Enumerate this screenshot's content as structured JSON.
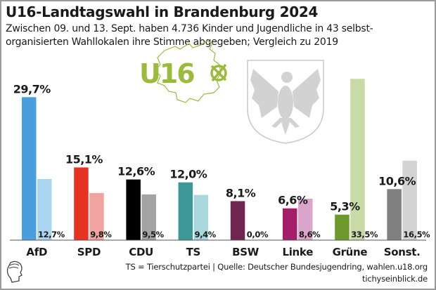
{
  "header": {
    "title": "U16-Landtagswahl in Brandenburg 2024",
    "subtitle_line1": "Zwischen 09. und 13. Sept. haben 4.736 Kinder und Jugendliche in 43 selbst-",
    "subtitle_line2": "organisierten Wahllokalen ihre Stimme abgegeben; Vergleich zu 2019"
  },
  "logos": {
    "u16_text": "U16",
    "u16_icon": "ballot-cross-icon",
    "coat_of_arms": "brandenburg-eagle-icon",
    "publisher_icon": "classical-head-icon",
    "u16_color": "#9bbb3c"
  },
  "footer": {
    "note": "TS = Tierschutzpartei  | Quelle: Deutscher Bundesjugendring, wahlen.u18.org",
    "brand": "tichyseinblick.de"
  },
  "chart_data": {
    "type": "bar",
    "title": "U16-Landtagswahl in Brandenburg 2024",
    "xlabel": "",
    "ylabel": "",
    "ylim": [
      0,
      35
    ],
    "grid": false,
    "legend": "none",
    "categories": [
      "AfD",
      "SPD",
      "CDU",
      "TS",
      "BSW",
      "Linke",
      "Grüne",
      "Sonst."
    ],
    "series": [
      {
        "name": "2024",
        "values": [
          29.7,
          15.1,
          12.6,
          12.0,
          8.1,
          6.6,
          5.3,
          10.6
        ],
        "labels": [
          "29,7%",
          "15,1%",
          "12,6%",
          "12,0%",
          "8,1%",
          "6,6%",
          "5,3%",
          "10,6%"
        ],
        "colors": [
          "#4a9ede",
          "#e63223",
          "#000000",
          "#3e9797",
          "#6e2651",
          "#a51e6a",
          "#6e9a2b",
          "#808080"
        ]
      },
      {
        "name": "2019",
        "values": [
          12.7,
          9.8,
          9.5,
          9.4,
          0.0,
          8.6,
          33.5,
          16.5
        ],
        "labels": [
          "12,7%",
          "9,8%",
          "9,5%",
          "9,4%",
          "0,0%",
          "8,6%",
          "33,5%",
          "16,5%"
        ],
        "colors": [
          "#acd6f0",
          "#f0a3a0",
          "#a3a3a3",
          "#a9d8dc",
          "#b89aae",
          "#d9a5cb",
          "#c8dba7",
          "#d3d3d3"
        ]
      }
    ]
  }
}
